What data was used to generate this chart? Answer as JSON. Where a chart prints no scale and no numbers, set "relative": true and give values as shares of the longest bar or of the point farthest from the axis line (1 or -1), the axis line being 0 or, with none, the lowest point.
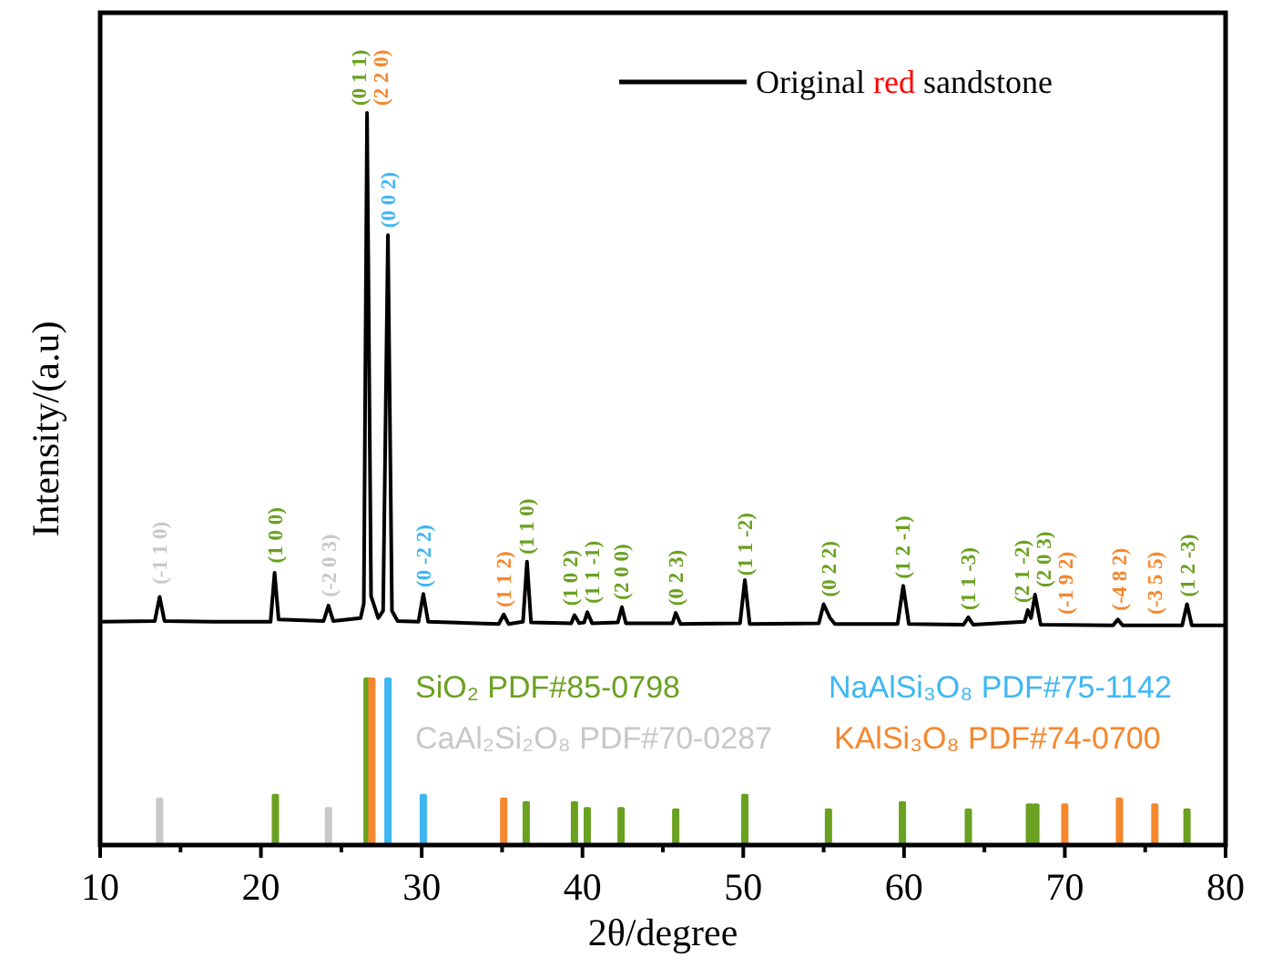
{
  "chart_data": {
    "type": "line",
    "relative": true,
    "xlabel": "2θ/degree",
    "ylabel": "Intensity/(a.u)",
    "xlim": [
      10,
      80
    ],
    "xticks": [
      10,
      {
        "value": 15,
        "label": null
      },
      20,
      {
        "value": 25,
        "label": null
      },
      30,
      {
        "value": 35,
        "label": null
      },
      40,
      {
        "value": 45,
        "label": null
      },
      50,
      {
        "value": 55,
        "label": null
      },
      60,
      {
        "value": 65,
        "label": null
      },
      70,
      {
        "value": 75,
        "label": null
      },
      80
    ],
    "legend": "top right",
    "series": [
      {
        "name": "Original red sandstone",
        "color": "#000000",
        "x": [
          10,
          13.4,
          13.7,
          14.0,
          17,
          20.6,
          20.85,
          21.1,
          23.9,
          24.2,
          24.5,
          26.2,
          26.4,
          26.6,
          26.85,
          27.3,
          27.6,
          27.9,
          28.15,
          28.5,
          29.8,
          30.1,
          30.4,
          34.8,
          35.1,
          35.4,
          36.3,
          36.55,
          36.8,
          39.3,
          39.5,
          39.8,
          40.1,
          40.3,
          40.6,
          42.2,
          42.45,
          42.7,
          45.6,
          45.8,
          46.1,
          49.8,
          50.1,
          50.4,
          54.7,
          55.0,
          55.4,
          55.7,
          59.6,
          59.95,
          60.3,
          63.7,
          64.0,
          64.3,
          67.5,
          67.7,
          67.9,
          68.15,
          68.5,
          73.0,
          73.3,
          73.6,
          77.3,
          77.6,
          77.9,
          80
        ],
        "values": [
          0.305,
          0.306,
          0.339,
          0.306,
          0.305,
          0.305,
          0.372,
          0.308,
          0.306,
          0.327,
          0.306,
          0.31,
          0.33,
          1.0,
          0.34,
          0.31,
          0.32,
          0.833,
          0.32,
          0.306,
          0.305,
          0.343,
          0.305,
          0.302,
          0.315,
          0.302,
          0.305,
          0.387,
          0.304,
          0.303,
          0.314,
          0.303,
          0.304,
          0.318,
          0.303,
          0.304,
          0.325,
          0.303,
          0.303,
          0.317,
          0.302,
          0.303,
          0.362,
          0.302,
          0.303,
          0.329,
          0.31,
          0.302,
          0.302,
          0.354,
          0.302,
          0.301,
          0.311,
          0.301,
          0.305,
          0.321,
          0.31,
          0.342,
          0.301,
          0.3,
          0.308,
          0.3,
          0.3,
          0.329,
          0.3,
          0.3
        ]
      },
      {
        "name": "SiO₂ PDF#85-0798",
        "type": "bar",
        "color": "#6aa121",
        "x": [
          20.9,
          26.6,
          36.5,
          39.5,
          40.3,
          42.4,
          45.8,
          50.1,
          55.3,
          59.9,
          64.0,
          67.8,
          68.2,
          77.6
        ],
        "values": [
          0.07,
          0.229,
          0.06,
          0.06,
          0.052,
          0.052,
          0.05,
          0.07,
          0.05,
          0.06,
          0.05,
          0.057,
          0.057,
          0.05
        ]
      },
      {
        "name": "NaAlSi₃O₈ PDF#75-1142",
        "type": "bar",
        "color": "#3fb6f2",
        "x": [
          27.9,
          30.1
        ],
        "values": [
          0.229,
          0.07
        ]
      },
      {
        "name": "CaAl₂Si₂O₈ PDF#70-0287",
        "type": "bar",
        "color": "#c8c8c8",
        "x": [
          13.7,
          24.2
        ],
        "values": [
          0.065,
          0.052
        ]
      },
      {
        "name": "KAlSi₃O₈ PDF#74-0700",
        "type": "bar",
        "color": "#f5872d",
        "x": [
          26.9,
          35.1,
          70.0,
          73.4,
          75.6
        ],
        "values": [
          0.229,
          0.065,
          0.057,
          0.065,
          0.057
        ]
      }
    ],
    "annotations": [
      {
        "text": "(-1 1 0)",
        "x": 13.7,
        "y": 0.346
      },
      {
        "text": "(1 0 0)",
        "x": 20.9,
        "y": 0.375
      },
      {
        "text": "(-2 0 3)",
        "x": 24.2,
        "y": 0.329
      },
      {
        "text": "(0 1 1)",
        "x": 26.6,
        "y": 1.0
      },
      {
        "text": "(2 2 0)",
        "x": 26.9,
        "y": 1.0
      },
      {
        "text": "(0 0 2)",
        "x": 27.9,
        "y": 0.833
      },
      {
        "text": "(0 -2 2)",
        "x": 30.1,
        "y": 0.342
      },
      {
        "text": "(1 1 2)",
        "x": 35.1,
        "y": 0.315
      },
      {
        "text": "(1 1 0)",
        "x": 36.5,
        "y": 0.387
      },
      {
        "text": "(1 0 2)",
        "x": 39.5,
        "y": 0.317
      },
      {
        "text": "(1 1 -1)",
        "x": 40.3,
        "y": 0.32
      },
      {
        "text": "(2 0 0)",
        "x": 42.4,
        "y": 0.325
      },
      {
        "text": "(0 2 3)",
        "x": 45.8,
        "y": 0.317
      },
      {
        "text": "(1 1 -2)",
        "x": 50.1,
        "y": 0.358
      },
      {
        "text": "(0 2 2)",
        "x": 55.3,
        "y": 0.329
      },
      {
        "text": "(1 2 -1)",
        "x": 59.9,
        "y": 0.354
      },
      {
        "text": "(1 1 -3)",
        "x": 64.0,
        "y": 0.311
      },
      {
        "text": "(2 1 -2)",
        "x": 67.8,
        "y": 0.321
      },
      {
        "text": "(2 0 3)",
        "x": 68.2,
        "y": 0.342
      },
      {
        "text": "(-1 9 2)",
        "x": 70.0,
        "y": 0.305
      },
      {
        "text": "(-4 8 2)",
        "x": 73.4,
        "y": 0.31
      },
      {
        "text": "(-3 5 5)",
        "x": 75.6,
        "y": 0.305
      },
      {
        "text": "(1 2 -3)",
        "x": 77.6,
        "y": 0.329
      }
    ]
  }
}
